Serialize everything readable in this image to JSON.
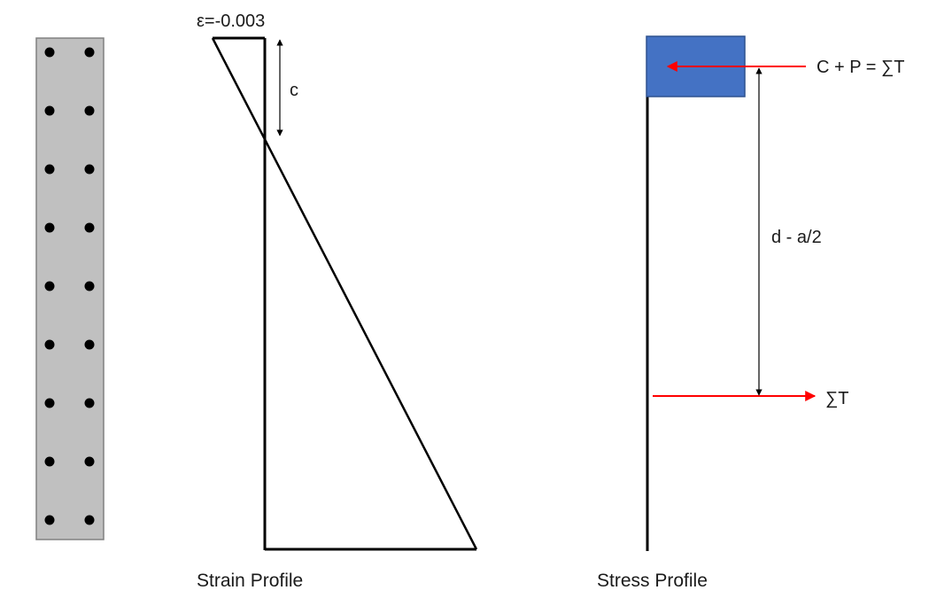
{
  "column_section": {
    "fill": "#c0c0c0",
    "stroke": "#808080",
    "rebar_rows": 9,
    "rebar_columns": 2,
    "rebar_color": "#000000"
  },
  "strain_profile": {
    "caption": "Strain Profile",
    "strain_label": "ε=-0.003",
    "neutral_axis_label": "c",
    "line_color": "#000000"
  },
  "stress_profile": {
    "caption": "Stress Profile",
    "compression_block_color": "#4472c4",
    "compression_force_label": "C + P = ∑T",
    "tension_force_label": "∑T",
    "lever_arm_label": "d - a/2",
    "force_arrow_color": "#ff0000"
  }
}
